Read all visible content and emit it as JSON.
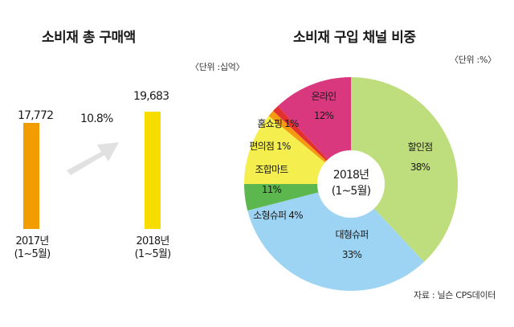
{
  "left": {
    "title": "소비재 총 구매액",
    "unit": "〈단위 :십억〉",
    "growth": "10.8%",
    "bars": [
      {
        "value_label": "17,772",
        "year": "2017년",
        "period": "(1~5월)",
        "color": "#f39c00"
      },
      {
        "value_label": "19,683",
        "year": "2018년",
        "period": "(1~5월)",
        "color": "#f7dc00"
      }
    ]
  },
  "right": {
    "title": "소비재 구입 채널 비중",
    "unit": "〈단위 :%〉",
    "center_line1": "2018년",
    "center_line2": "(1~5월)",
    "source": "자료 : 닐슨 CPS데이터"
  },
  "chart_data": [
    {
      "type": "bar",
      "title": "소비재 총 구매액",
      "unit": "십억",
      "categories": [
        "2017년 (1~5월)",
        "2018년 (1~5월)"
      ],
      "values": [
        17772,
        19683
      ],
      "growth_annotation": "10.8%"
    },
    {
      "type": "pie",
      "title": "소비재 구입 채널 비중",
      "unit": "%",
      "center_label": "2018년 (1~5월)",
      "slices": [
        {
          "name": "할인점",
          "value": 38,
          "color": "#bedd7c"
        },
        {
          "name": "대형슈퍼",
          "value": 33,
          "color": "#9ed4f3"
        },
        {
          "name": "소형슈퍼",
          "value": 4,
          "color": "#5cb84e"
        },
        {
          "name": "조합마트",
          "value": 11,
          "color": "#f4ee4e"
        },
        {
          "name": "편의점",
          "value": 1,
          "color": "#f49b12"
        },
        {
          "name": "홈쇼핑",
          "value": 1,
          "color": "#e4312f"
        },
        {
          "name": "온라인",
          "value": 12,
          "color": "#d9377e"
        }
      ]
    }
  ]
}
